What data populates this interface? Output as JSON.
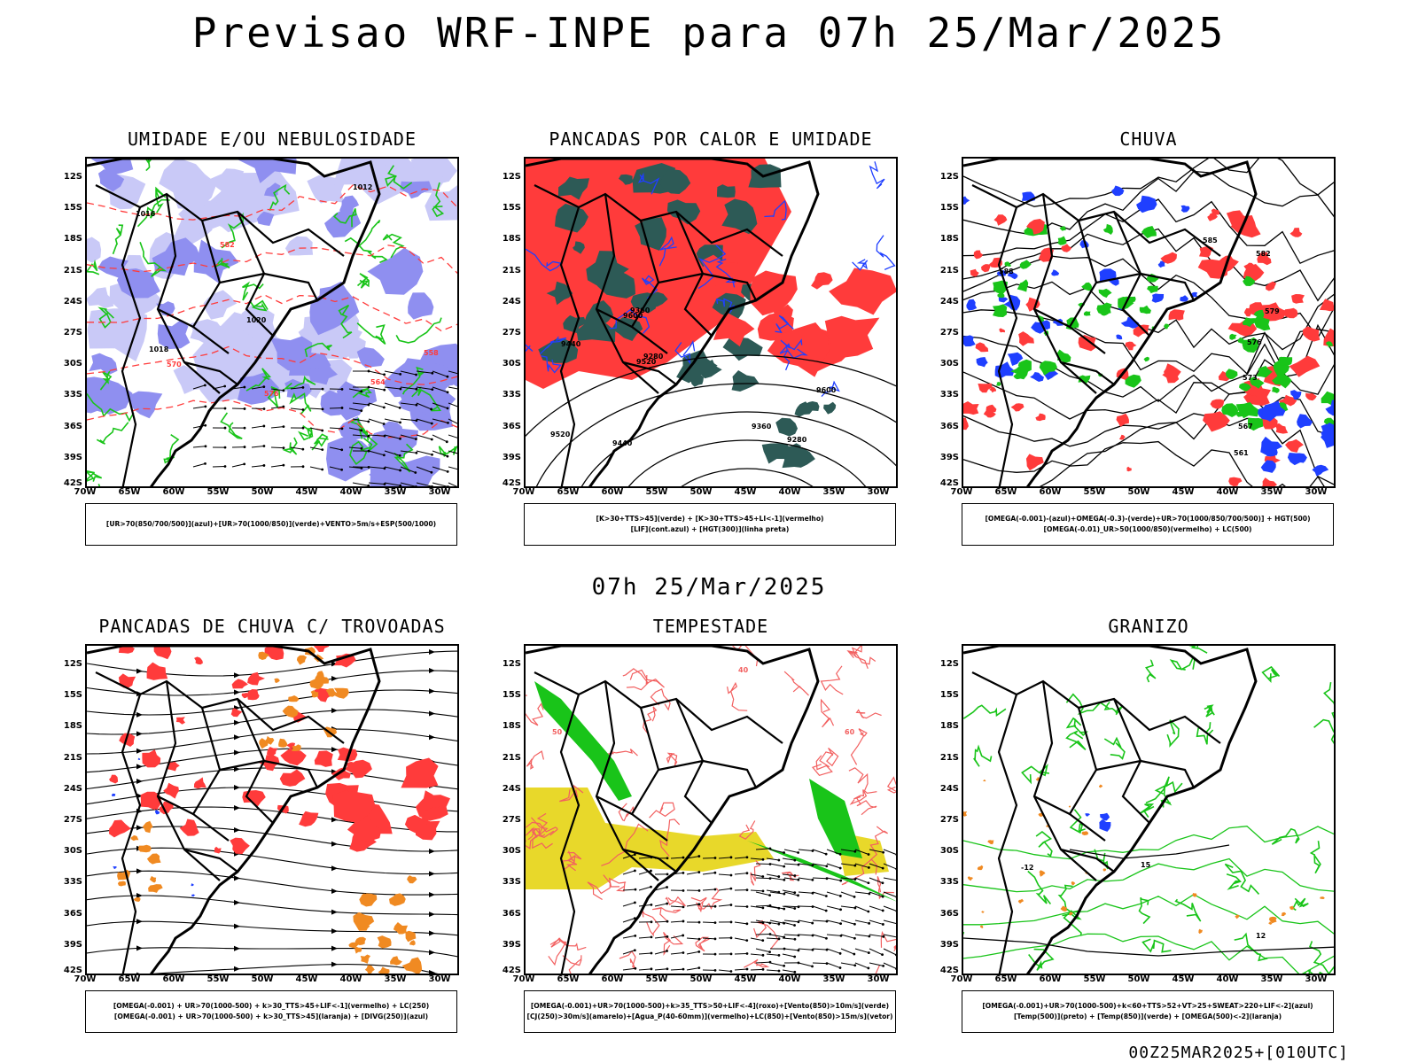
{
  "title": "Previsao WRF-INPE  para 07h 25/Mar/2025",
  "subtitle": "07h 25/Mar/2025",
  "footer": "00Z25MAR2025+[010UTC]",
  "lat_labels": [
    "12S",
    "15S",
    "18S",
    "21S",
    "24S",
    "27S",
    "30S",
    "33S",
    "36S",
    "39S",
    "42S"
  ],
  "lon_labels": [
    "70W",
    "65W",
    "60W",
    "55W",
    "50W",
    "45W",
    "40W",
    "35W",
    "30W"
  ],
  "colors": {
    "humid_blue": "#8f8ff0",
    "humid_light": "#c9c9f7",
    "green": "#19c419",
    "red": "#ff3b3b",
    "dark_teal": "#2d5a56",
    "blue_line": "#1f3fff",
    "orange": "#f08a22",
    "yellow": "#e8d82a",
    "salmon": "#f26060"
  },
  "panels": [
    {
      "title": "UMIDADE E/OU NEBULOSIDADE",
      "legend": [
        "[UR>70(850/700/500)](azul)+[UR>70(1000/850)](verde)+VENTO>5m/s+ESP(500/1000)"
      ],
      "contour_labels": [
        "1016",
        "1012",
        "1020",
        "1018",
        "570",
        "576",
        "564",
        "558",
        "582"
      ]
    },
    {
      "title": "PANCADAS POR CALOR E UMIDADE",
      "legend": [
        "[K>30+TTS>45](verde) + [K>30+TTS>45+LI<-1](vermelho)",
        "[LIF](cont.azul) + [HGT(300)](linha preta)"
      ],
      "contour_labels": [
        "9600",
        "9520",
        "9440",
        "9360",
        "9280"
      ]
    },
    {
      "title": "CHUVA",
      "legend": [
        "[OMEGA(-0.001)-(azul)+OMEGA(-0.3)-(verde)+UR>70(1000/850/700/500)] + HGT(500)",
        "[OMEGA(-0.01)_UR>50(1000/850)(vermelho) + LC(500)"
      ],
      "contour_labels": [
        "588",
        "585",
        "582",
        "579",
        "576",
        "573",
        "567",
        "561"
      ]
    },
    {
      "title": "PANCADAS DE CHUVA C/ TROVOADAS",
      "legend": [
        "[OMEGA(-0.001) + UR>70(1000-500) + k>30_TTS>45+LIF<-1](vermelho) + LC(250)",
        "[OMEGA(-0.001) + UR>70(1000-500) + k>30_TTS>45](laranja) + [DIVG(250)](azul)"
      ],
      "contour_labels": []
    },
    {
      "title": "TEMPESTADE",
      "legend": [
        "[OMEGA(-0.001)+UR>70(1000-500)+k>35_TTS>50+LIF<-4](roxo)+[Vento(850)>10m/s](verde)",
        "[CJ(250)>30m/s](amarelo)+[Agua_P(40-60mm)](vermelho)+LC(850)+[Vento(850)>15m/s](vetor)"
      ],
      "contour_labels": [
        "50",
        "40",
        "60"
      ]
    },
    {
      "title": "GRANIZO",
      "legend": [
        "[OMEGA(-0.001)+UR>70(1000-500)+k<60+TTS>52+VT>25+SWEAT>220+LIF<-2](azul)",
        "[Temp(500)](preto) + [Temp(850)](verde) + [OMEGA(500)<-2](laranja)"
      ],
      "contour_labels": [
        "-12",
        "15",
        "12"
      ]
    }
  ]
}
